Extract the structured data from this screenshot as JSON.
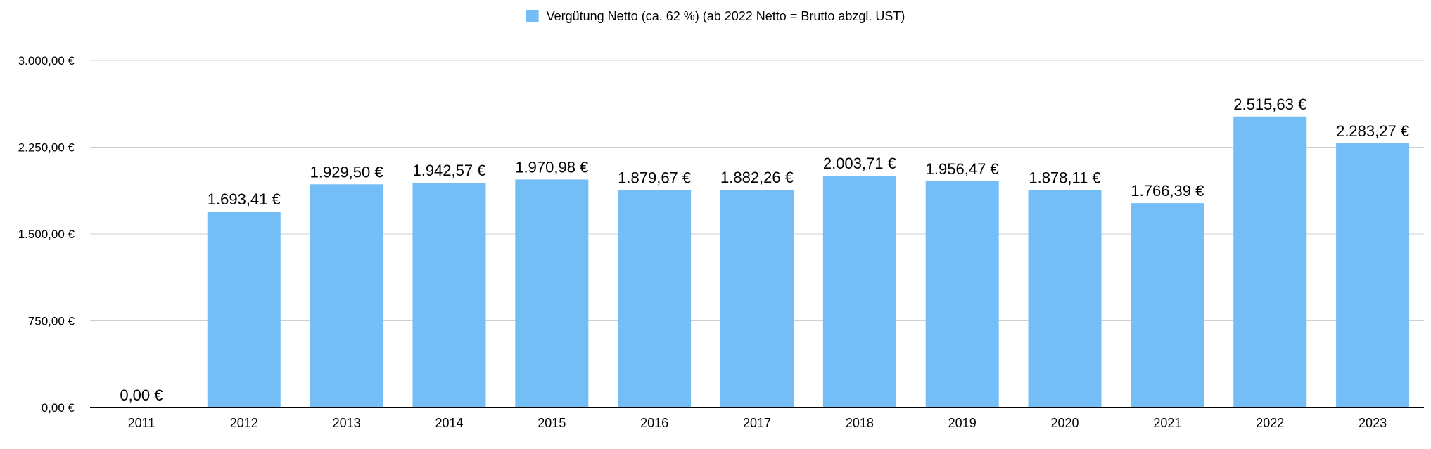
{
  "chart_data": {
    "type": "bar",
    "title": "",
    "xlabel": "",
    "ylabel": "",
    "legend_position": "top-center",
    "grid": true,
    "categories": [
      "2011",
      "2012",
      "2013",
      "2014",
      "2015",
      "2016",
      "2017",
      "2018",
      "2019",
      "2020",
      "2021",
      "2022",
      "2023"
    ],
    "series": [
      {
        "name": "Vergütung Netto (ca. 62 %) (ab 2022 Netto = Brutto abzgl. UST)",
        "color": "#74BEF7",
        "values": [
          0,
          1693.41,
          1929.5,
          1942.57,
          1970.98,
          1879.67,
          1882.26,
          2003.71,
          1956.47,
          1878.11,
          1766.39,
          2515.63,
          2283.27
        ],
        "data_labels": [
          "0,00 €",
          "1.693,41 €",
          "1.929,50 €",
          "1.942,57 €",
          "1.970,98 €",
          "1.879,67 €",
          "1.882,26 €",
          "2.003,71 €",
          "1.956,47 €",
          "1.878,11 €",
          "1.766,39 €",
          "2.515,63 €",
          "2.283,27 €"
        ]
      }
    ],
    "ylim": [
      0,
      3000
    ],
    "y_ticks": [
      0,
      750,
      1500,
      2250,
      3000
    ],
    "y_tick_labels": [
      "0,00 €",
      "750,00 €",
      "1.500,00 €",
      "2.250,00 €",
      "3.000,00 €"
    ]
  }
}
